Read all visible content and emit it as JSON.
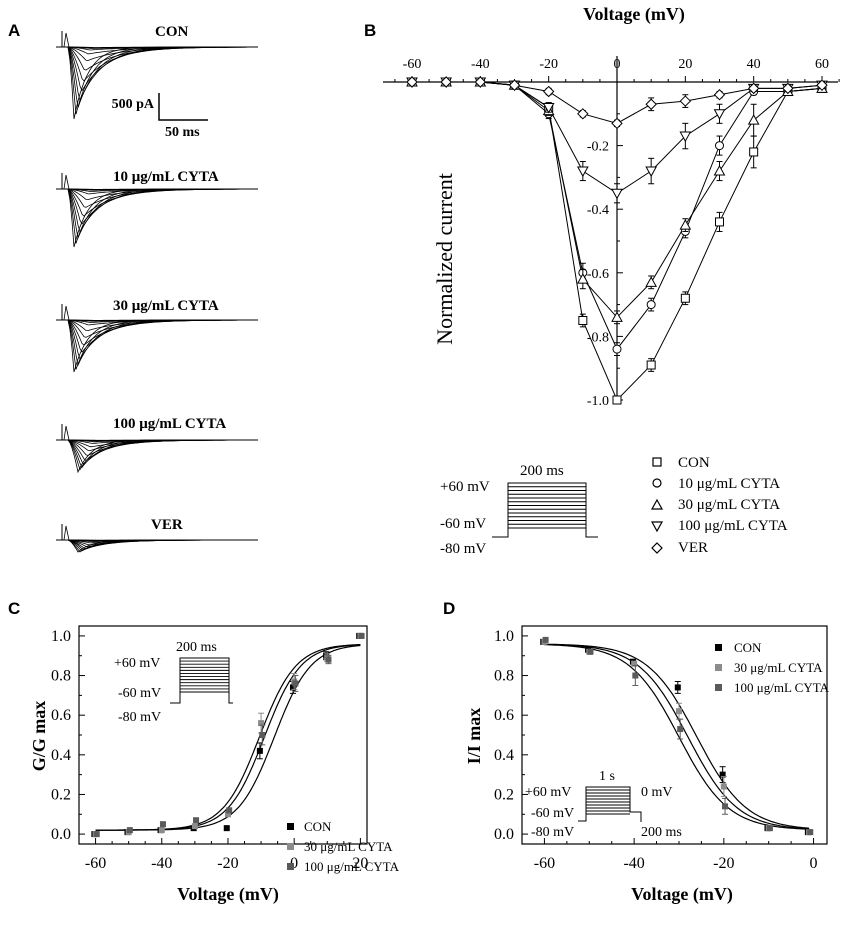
{
  "panels": {
    "A": {
      "label": "A",
      "scale_current": "500 pA",
      "scale_time": "50 ms",
      "traces": [
        {
          "title": "CON"
        },
        {
          "title": "10 μg/mL CYTA"
        },
        {
          "title": "30 μg/mL CYTA"
        },
        {
          "title": "100 μg/mL CYTA"
        },
        {
          "title": "VER"
        }
      ]
    },
    "B": {
      "label": "B"
    },
    "C": {
      "label": "C"
    },
    "D": {
      "label": "D"
    }
  },
  "protocol_B": {
    "duration": "200 ms",
    "top": "+60 mV",
    "mid": "-60 mV",
    "hold": "-80 mV"
  },
  "protocol_C": {
    "duration": "200 ms",
    "top": "+60 mV",
    "mid": "-60 mV",
    "hold": "-80 mV"
  },
  "protocol_D": {
    "prepulse": "1 s",
    "top": "+60 mV",
    "mid": "-60 mV",
    "hold": "-80 mV",
    "test": "0 mV",
    "test_duration": "200 ms"
  },
  "colors": {
    "con": "#000000",
    "cyta30": "#8c8c8c",
    "cyta100": "#5a5a5a",
    "axis": "#000000"
  },
  "chart_data": [
    {
      "id": "B",
      "type": "line",
      "title": "",
      "xlabel": "Voltage (mV)",
      "ylabel": "Normalized current",
      "xlim": [
        -65,
        63
      ],
      "ylim": [
        -1.0,
        0
      ],
      "xticks": [
        -60,
        -40,
        -20,
        0,
        20,
        40,
        60
      ],
      "yticks": [
        -0.2,
        -0.4,
        -0.6,
        -0.8,
        -1.0
      ],
      "x": [
        -60,
        -50,
        -40,
        -30,
        -20,
        -10,
        0,
        10,
        20,
        30,
        40,
        50,
        60
      ],
      "series": [
        {
          "name": "CON",
          "marker": "square",
          "values": [
            0,
            0,
            0,
            -0.01,
            -0.08,
            -0.75,
            -1.0,
            -0.89,
            -0.68,
            -0.44,
            -0.22,
            -0.03,
            -0.02
          ],
          "errors": [
            0.005,
            0.005,
            0.005,
            0.01,
            0.015,
            0.02,
            0.005,
            0.02,
            0.02,
            0.03,
            0.05,
            0.01,
            0.01
          ]
        },
        {
          "name": "10 μg/mL CYTA",
          "marker": "circle",
          "values": [
            0,
            0,
            0,
            -0.01,
            -0.1,
            -0.6,
            -0.84,
            -0.7,
            -0.47,
            -0.2,
            -0.03,
            -0.03,
            -0.02
          ],
          "errors": [
            0.005,
            0.005,
            0.005,
            0.01,
            0.015,
            0.03,
            0.02,
            0.02,
            0.02,
            0.03,
            0.01,
            0.01,
            0.01
          ]
        },
        {
          "name": "30 μg/mL CYTA",
          "marker": "triangle-up",
          "values": [
            0,
            0,
            0,
            -0.01,
            -0.09,
            -0.62,
            -0.74,
            -0.63,
            -0.45,
            -0.28,
            -0.12,
            -0.03,
            -0.02
          ],
          "errors": [
            0.005,
            0.005,
            0.005,
            0.01,
            0.015,
            0.03,
            0.02,
            0.02,
            0.02,
            0.03,
            0.05,
            0.01,
            0.01
          ]
        },
        {
          "name": "100 μg/mL CYTA",
          "marker": "triangle-down",
          "values": [
            0,
            0,
            0,
            -0.01,
            -0.08,
            -0.28,
            -0.35,
            -0.28,
            -0.17,
            -0.1,
            -0.02,
            -0.02,
            -0.01
          ],
          "errors": [
            0.005,
            0.005,
            0.005,
            0.01,
            0.015,
            0.03,
            0.03,
            0.04,
            0.04,
            0.03,
            0.01,
            0.01,
            0.01
          ]
        },
        {
          "name": "VER",
          "marker": "diamond",
          "values": [
            0,
            0,
            0,
            -0.01,
            -0.03,
            -0.1,
            -0.13,
            -0.07,
            -0.06,
            -0.04,
            -0.02,
            -0.02,
            -0.01
          ],
          "errors": [
            0.005,
            0.005,
            0.005,
            0.01,
            0.01,
            0.01,
            0.01,
            0.02,
            0.02,
            0.01,
            0.01,
            0.01,
            0.01
          ]
        }
      ]
    },
    {
      "id": "C",
      "type": "scatter",
      "title": "",
      "xlabel": "Voltage (mV)",
      "ylabel": "G/G max",
      "xlim": [
        -65,
        22
      ],
      "ylim": [
        -0.05,
        1.05
      ],
      "xticks": [
        -60,
        -40,
        -20,
        0,
        20
      ],
      "yticks": [
        0.0,
        0.2,
        0.4,
        0.6,
        0.8,
        1.0
      ],
      "x": [
        -60,
        -50,
        -40,
        -30,
        -20,
        -10,
        0,
        10,
        20
      ],
      "series": [
        {
          "name": "CON",
          "color": "#000000",
          "values": [
            0.0,
            0.01,
            0.02,
            0.03,
            0.03,
            0.42,
            0.74,
            0.9,
            1.0
          ],
          "errors": [
            0,
            0,
            0,
            0,
            0,
            0.04,
            0.03,
            0.02,
            0
          ],
          "fit": {
            "v_half": -6,
            "k": 5.5
          }
        },
        {
          "name": "30 μg/mL CYTA",
          "color": "#8c8c8c",
          "values": [
            0.0,
            0.01,
            0.02,
            0.04,
            0.1,
            0.56,
            0.77,
            0.89,
            1.0
          ],
          "errors": [
            0,
            0,
            0,
            0,
            0,
            0.05,
            0.04,
            0.02,
            0
          ],
          "fit": {
            "v_half": -9,
            "k": 5.5
          }
        },
        {
          "name": "100 μg/mL CYTA",
          "color": "#5a5a5a",
          "values": [
            0.0,
            0.02,
            0.05,
            0.07,
            0.12,
            0.5,
            0.76,
            0.88,
            1.0
          ],
          "errors": [
            0,
            0,
            0,
            0,
            0,
            0.05,
            0.04,
            0.02,
            0
          ],
          "fit": {
            "v_half": -10.5,
            "k": 5.5
          }
        }
      ]
    },
    {
      "id": "D",
      "type": "scatter",
      "title": "",
      "xlabel": "Voltage (mV)",
      "ylabel": "I/I max",
      "xlim": [
        -65,
        3
      ],
      "ylim": [
        -0.05,
        1.05
      ],
      "xticks": [
        -60,
        -40,
        -20,
        0
      ],
      "yticks": [
        0.0,
        0.2,
        0.4,
        0.6,
        0.8,
        1.0
      ],
      "x": [
        -60,
        -50,
        -40,
        -30,
        -20,
        -10,
        -1
      ],
      "series": [
        {
          "name": "CON",
          "color": "#000000",
          "values": [
            0.97,
            0.93,
            0.87,
            0.74,
            0.3,
            0.03,
            0.01
          ],
          "errors": [
            0,
            0,
            0,
            0.03,
            0.04,
            0,
            0
          ],
          "fit": {
            "v_half": -26,
            "k": 5.5
          }
        },
        {
          "name": "30 μg/mL CYTA",
          "color": "#8c8c8c",
          "values": [
            0.97,
            0.92,
            0.86,
            0.62,
            0.24,
            0.03,
            0.01
          ],
          "errors": [
            0,
            0,
            0,
            0.04,
            0.05,
            0,
            0
          ],
          "fit": {
            "v_half": -28,
            "k": 5.5
          }
        },
        {
          "name": "100 μg/mL CYTA",
          "color": "#5a5a5a",
          "values": [
            0.98,
            0.92,
            0.8,
            0.53,
            0.14,
            0.03,
            0.01
          ],
          "errors": [
            0,
            0,
            0.05,
            0.05,
            0.04,
            0,
            0
          ],
          "fit": {
            "v_half": -30,
            "k": 5.5
          }
        }
      ]
    }
  ]
}
